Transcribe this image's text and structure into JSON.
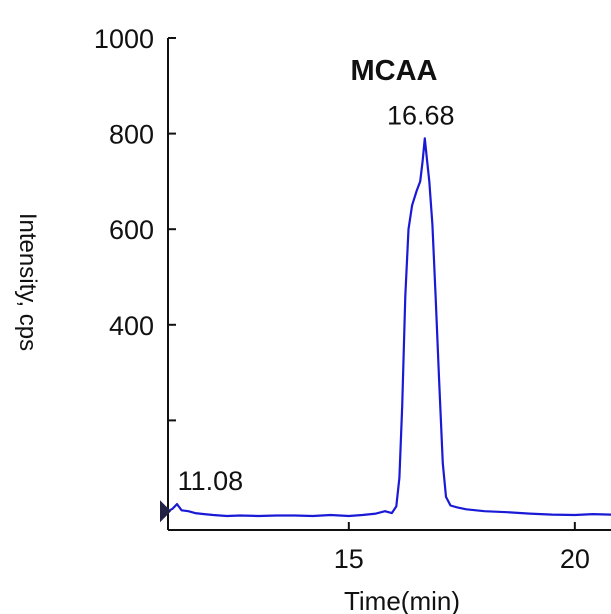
{
  "chart_data": {
    "type": "line",
    "title": "MCAA",
    "xlabel": "Time(min)",
    "ylabel": "Intensity, cps",
    "xlim": [
      11,
      20.8
    ],
    "ylim": [
      0,
      1000
    ],
    "x_ticks": [
      15,
      20
    ],
    "y_ticks": [
      400,
      600,
      800,
      1000
    ],
    "grid": false,
    "legend": "none",
    "series": [
      {
        "color": "#1a1ad6",
        "x": [
          11.0,
          11.1,
          11.2,
          11.3,
          11.45,
          11.6,
          11.8,
          12.0,
          12.3,
          12.6,
          13.0,
          13.4,
          13.8,
          14.2,
          14.6,
          15.0,
          15.3,
          15.6,
          15.8,
          15.95,
          16.05,
          16.12,
          16.18,
          16.25,
          16.32,
          16.4,
          16.5,
          16.58,
          16.63,
          16.68,
          16.73,
          16.78,
          16.85,
          16.92,
          17.0,
          17.08,
          17.15,
          17.25,
          17.4,
          17.6,
          18.0,
          18.5,
          19.0,
          19.5,
          20.0,
          20.4,
          20.8
        ],
        "y": [
          10,
          15,
          25,
          12,
          10,
          6,
          4,
          2,
          0,
          1,
          0,
          1,
          1,
          0,
          2,
          0,
          2,
          5,
          10,
          6,
          20,
          80,
          230,
          460,
          600,
          650,
          680,
          700,
          740,
          790,
          745,
          700,
          610,
          460,
          280,
          110,
          40,
          22,
          18,
          14,
          10,
          8,
          5,
          3,
          2,
          4,
          3
        ]
      }
    ],
    "peak_labels": [
      {
        "x": 11.08,
        "y": 25,
        "text": "11.08"
      },
      {
        "x": 16.68,
        "y": 790,
        "text": "16.68"
      }
    ]
  }
}
